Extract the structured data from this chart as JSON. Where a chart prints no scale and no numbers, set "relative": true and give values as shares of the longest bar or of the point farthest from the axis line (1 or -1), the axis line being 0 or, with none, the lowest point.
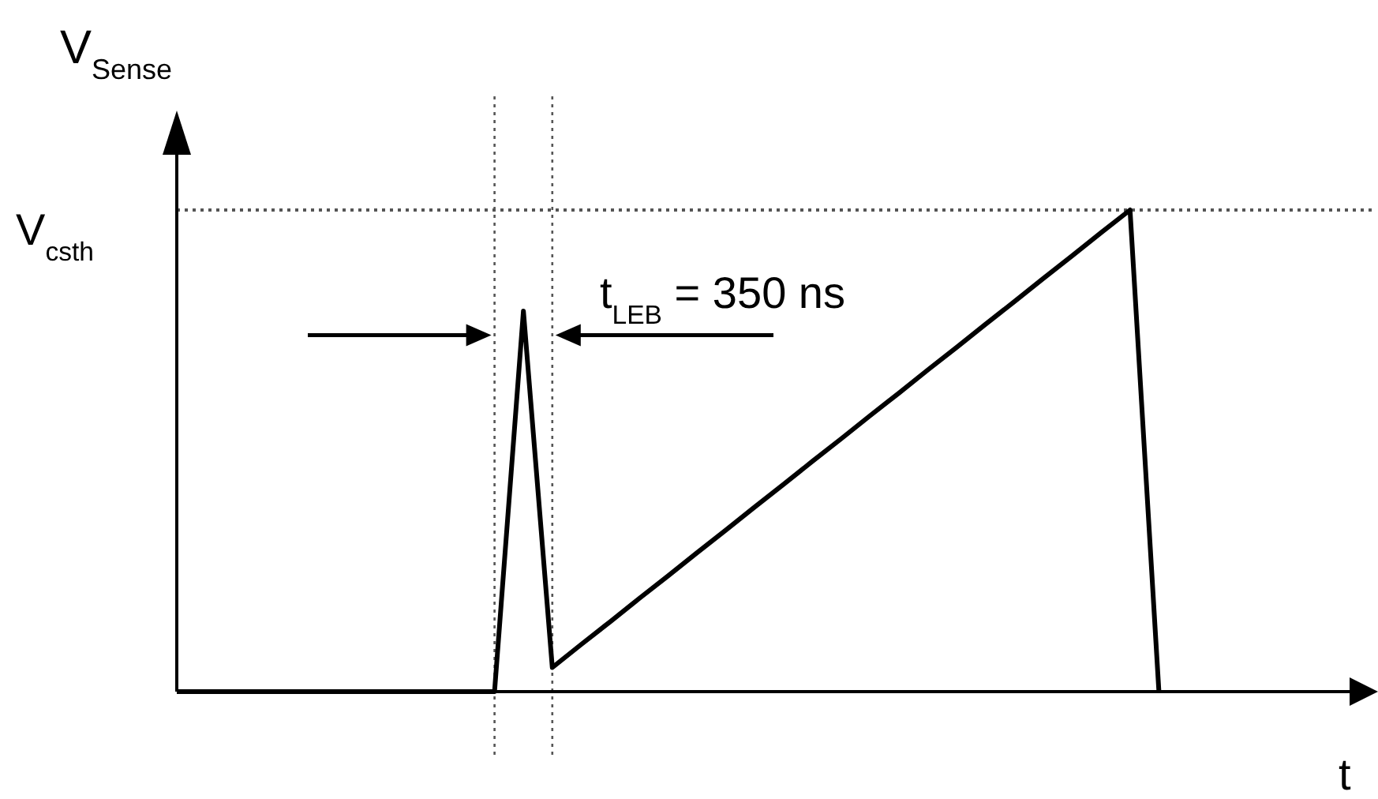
{
  "chart_data": {
    "type": "line",
    "relative": true,
    "xlabel": "t",
    "ylabel": "V$_{Sense}$",
    "categories": [
      null,
      null,
      null,
      null,
      null,
      null,
      null,
      null,
      null,
      null,
      null,
      null,
      null,
      null,
      null,
      null,
      null,
      null,
      null,
      null,
      null,
      null,
      null,
      null,
      null,
      null,
      null,
      null,
      null,
      null,
      null,
      null,
      null,
      null,
      null
    ],
    "series": [
      {
        "color": "#000000",
        "values": [
          0,
          0,
          0,
          0,
          0,
          0,
          0,
          0,
          0,
          0,
          0,
          0,
          0.79,
          0.05,
          0.098,
          0.145,
          0.193,
          0.24,
          0.288,
          0.335,
          0.383,
          0.43,
          0.478,
          0.525,
          0.573,
          0.62,
          0.668,
          0.715,
          0.763,
          0.81,
          0.858,
          0.905,
          0.953,
          1,
          0
        ]
      }
    ],
    "ref_lines": [
      {
        "axis": "y",
        "value": 1,
        "label": "V$_{csth}$",
        "line_style": "dotted",
        "color": "#555555"
      }
    ],
    "annotations": [
      "t$_{LEB}$ = 350 ns"
    ]
  }
}
